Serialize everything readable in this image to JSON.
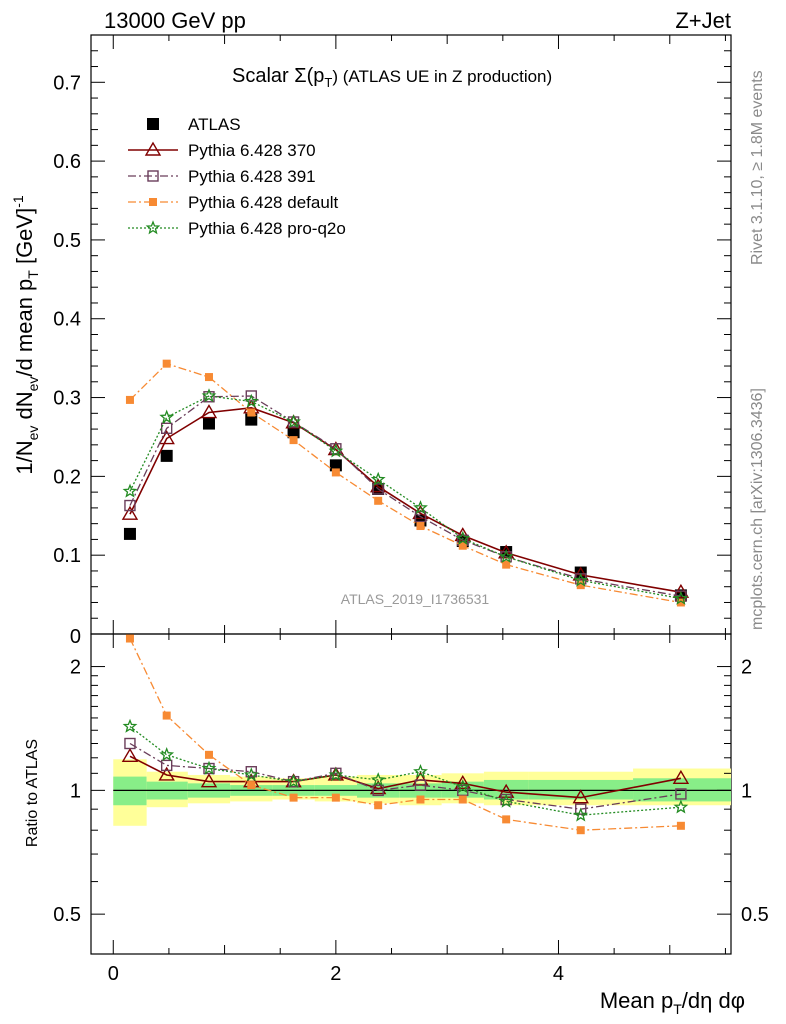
{
  "header": {
    "energy_label": "13000 GeV pp",
    "process_label": "Z+Jet"
  },
  "side_labels": {
    "rivet": "Rivet 3.1.10, ≥ 1.8M events",
    "mcplots": "mcplots.cern.ch [arXiv:1306.3436]"
  },
  "analysis_id": "ATLAS_2019_I1736531",
  "chart_data": [
    {
      "type": "scatter",
      "panel": "main",
      "title": "Scalar Σ(pT) (ATLAS UE in Z production)",
      "title_parts": {
        "prefix": "Scalar Σ(p",
        "sub": "T",
        "suffix": ") (ATLAS UE in Z production)"
      },
      "ylabel": "1/Nev dNev/d mean pT [GeV]-1",
      "ylim": [
        0,
        0.76
      ],
      "xlim": [
        -0.2,
        5.55
      ],
      "yticks": [
        0.1,
        0.2,
        0.3,
        0.4,
        0.5,
        0.6,
        0.7
      ],
      "ytick_labels": [
        "0.1",
        "0.2",
        "0.3",
        "0.4",
        "0.5",
        "0.6",
        "0.7"
      ],
      "y_bottom_label": "0",
      "legend_placement": "top-left",
      "x": [
        0.15,
        0.48,
        0.86,
        1.24,
        1.62,
        2.0,
        2.38,
        2.76,
        3.14,
        3.53,
        4.2,
        5.1
      ],
      "series": [
        {
          "name": "ATLAS",
          "color": "#000000",
          "marker": "square",
          "values": [
            0.127,
            0.226,
            0.267,
            0.272,
            0.256,
            0.214,
            0.184,
            0.144,
            0.118,
            0.104,
            0.078,
            0.049
          ]
        },
        {
          "name": "Pythia 6.428 370",
          "color": "#800000",
          "marker": "triangle-open",
          "line": "solid",
          "values": [
            0.152,
            0.248,
            0.281,
            0.287,
            0.268,
            0.234,
            0.187,
            0.153,
            0.125,
            0.103,
            0.075,
            0.053
          ]
        },
        {
          "name": "Pythia 6.428 391",
          "color": "#6a3d5a",
          "marker": "square-open",
          "line": "dashdot",
          "values": [
            0.163,
            0.261,
            0.301,
            0.302,
            0.269,
            0.235,
            0.184,
            0.149,
            0.119,
            0.098,
            0.07,
            0.048
          ]
        },
        {
          "name": "Pythia 6.428 default",
          "color": "#f78a33",
          "marker": "square",
          "line": "dashdot",
          "values": [
            0.297,
            0.343,
            0.326,
            0.281,
            0.246,
            0.205,
            0.169,
            0.137,
            0.112,
            0.088,
            0.062,
            0.04
          ]
        },
        {
          "name": "Pythia 6.428 pro-q2o",
          "color": "#238b22",
          "marker": "star",
          "line": "dotted",
          "values": [
            0.181,
            0.275,
            0.302,
            0.295,
            0.269,
            0.232,
            0.196,
            0.16,
            0.121,
            0.098,
            0.068,
            0.045
          ]
        }
      ]
    },
    {
      "type": "scatter",
      "panel": "ratio",
      "ylabel": "Ratio to ATLAS",
      "ylim": [
        0.4,
        2.4
      ],
      "xlim": [
        -0.2,
        5.55
      ],
      "yticks": [
        0.5,
        1,
        2
      ],
      "ytick_labels": [
        "0.5",
        "1",
        "2"
      ],
      "xticks": [
        0,
        2,
        4
      ],
      "xtick_labels": [
        "0",
        "2",
        "4"
      ],
      "xlabel": "Mean pT/dη dφ",
      "x": [
        0.15,
        0.48,
        0.86,
        1.24,
        1.62,
        2.0,
        2.38,
        2.76,
        3.14,
        3.53,
        4.2,
        5.1
      ],
      "bin_edges": [
        0.0,
        0.3,
        0.67,
        1.05,
        1.43,
        1.81,
        2.19,
        2.57,
        2.95,
        3.33,
        3.73,
        4.67,
        5.55
      ],
      "band_green": [
        [
          0.92,
          1.08
        ],
        [
          0.95,
          1.05
        ],
        [
          0.96,
          1.04
        ],
        [
          0.97,
          1.03
        ],
        [
          0.97,
          1.03
        ],
        [
          0.97,
          1.03
        ],
        [
          0.96,
          1.04
        ],
        [
          0.96,
          1.04
        ],
        [
          0.96,
          1.05
        ],
        [
          0.95,
          1.06
        ],
        [
          0.95,
          1.06
        ],
        [
          0.94,
          1.07
        ]
      ],
      "band_yellow": [
        [
          0.82,
          1.19
        ],
        [
          0.91,
          1.11
        ],
        [
          0.93,
          1.09
        ],
        [
          0.94,
          1.08
        ],
        [
          0.95,
          1.07
        ],
        [
          0.94,
          1.08
        ],
        [
          0.93,
          1.09
        ],
        [
          0.92,
          1.09
        ],
        [
          0.93,
          1.1
        ],
        [
          0.92,
          1.11
        ],
        [
          0.92,
          1.11
        ],
        [
          0.92,
          1.13
        ]
      ],
      "series": [
        {
          "name": "Pythia 6.428 370",
          "values": [
            1.21,
            1.09,
            1.05,
            1.05,
            1.05,
            1.09,
            1.01,
            1.06,
            1.04,
            0.99,
            0.96,
            1.07
          ]
        },
        {
          "name": "Pythia 6.428 391",
          "values": [
            1.3,
            1.15,
            1.13,
            1.11,
            1.05,
            1.1,
            1.0,
            1.03,
            1.0,
            0.95,
            0.9,
            0.98
          ]
        },
        {
          "name": "Pythia 6.428 default",
          "values": [
            2.34,
            1.52,
            1.22,
            1.03,
            0.96,
            0.96,
            0.92,
            0.95,
            0.95,
            0.85,
            0.8,
            0.82
          ]
        },
        {
          "name": "Pythia 6.428 pro-q2o",
          "values": [
            1.43,
            1.22,
            1.13,
            1.09,
            1.05,
            1.09,
            1.06,
            1.11,
            1.02,
            0.94,
            0.87,
            0.91
          ]
        }
      ]
    }
  ]
}
